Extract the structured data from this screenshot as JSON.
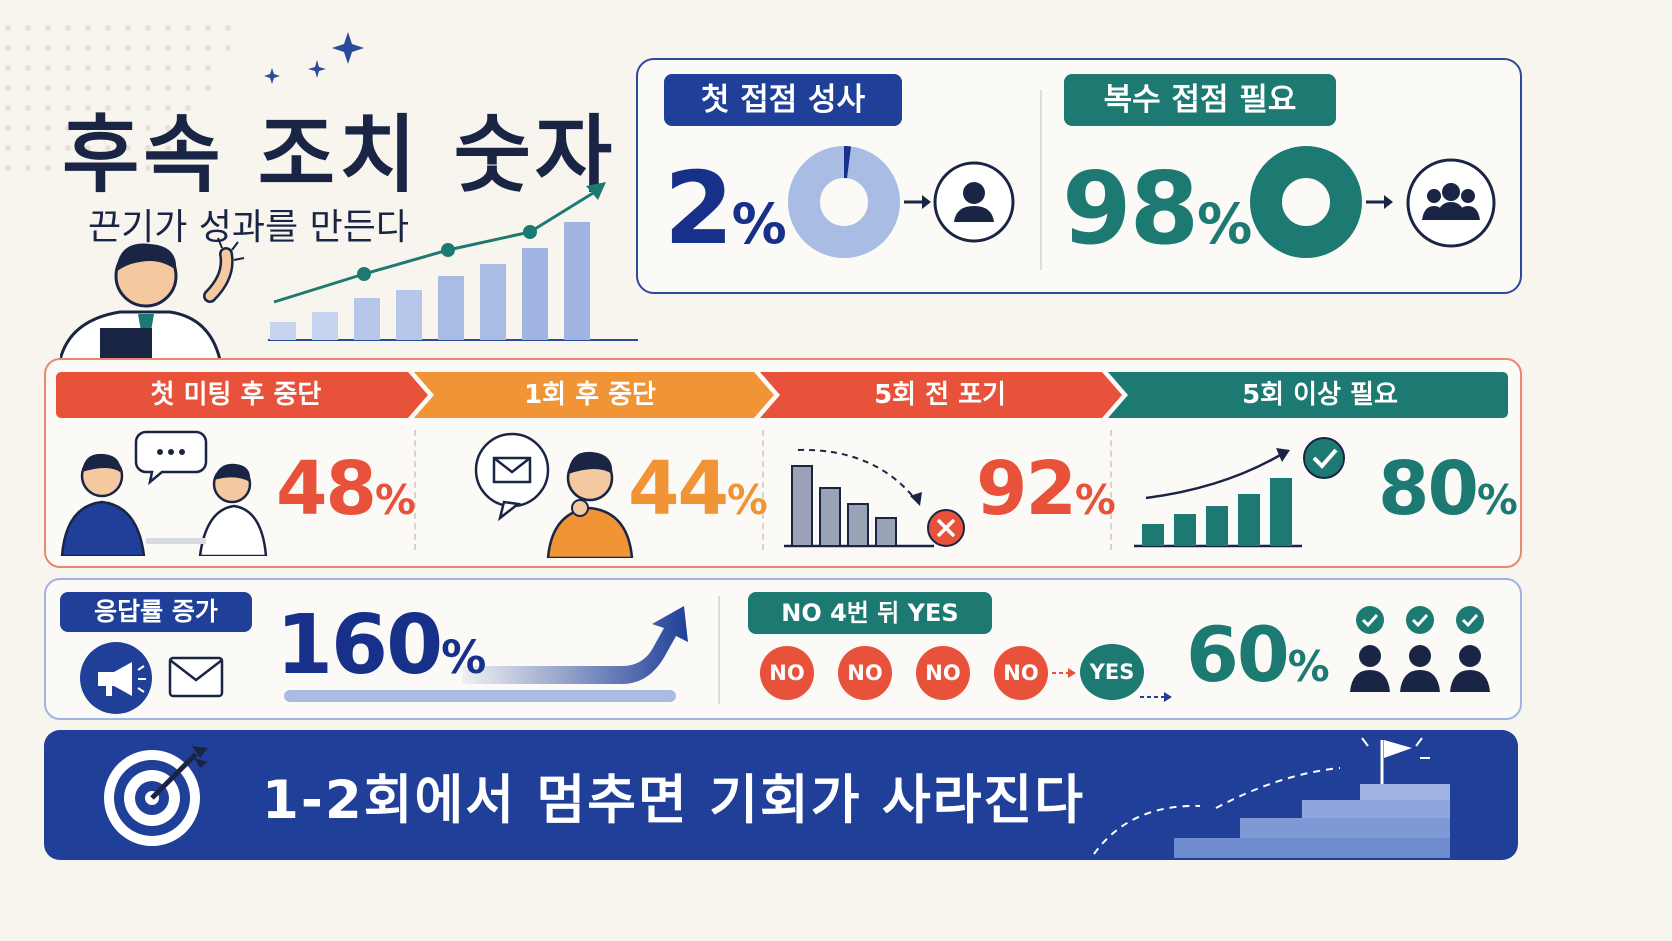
{
  "header": {
    "title": "후속 조치 숫자",
    "subtitle": "끈기가 성과를 만든다"
  },
  "contact_panel": {
    "first": {
      "label": "첫 접점 성사",
      "value": "2",
      "unit": "%",
      "fraction": 0.02,
      "color": "#17318a",
      "ring_color": "#a9bce3"
    },
    "multiple": {
      "label": "복수 접점 필요",
      "value": "98",
      "unit": "%",
      "fraction": 0.98,
      "color": "#1d7a72"
    }
  },
  "stages": [
    {
      "label": "첫 미팅 후 중단",
      "value": "48",
      "unit": "%",
      "color": "#e8513a"
    },
    {
      "label": "1회 후 중단",
      "value": "44",
      "unit": "%",
      "color": "#f09436"
    },
    {
      "label": "5회 전 포기",
      "value": "92",
      "unit": "%",
      "color": "#e8513a"
    },
    {
      "label": "5회 이상 필요",
      "value": "80",
      "unit": "%",
      "color": "#1d7a72"
    }
  ],
  "response": {
    "label": "응답률 증가",
    "value": "160",
    "unit": "%"
  },
  "no_yes": {
    "label": "NO 4번 뒤 YES",
    "badges": [
      "NO",
      "NO",
      "NO",
      "NO"
    ],
    "yes": "YES",
    "value": "60",
    "unit": "%"
  },
  "banner": {
    "text": "1-2회에서 멈추면 기회가 사라진다"
  },
  "icons": [
    "sparkle-icon",
    "person-icon",
    "group-icon",
    "chat-icon",
    "envelope-icon",
    "megaphone-icon",
    "check-icon",
    "target-icon",
    "flag-icon"
  ]
}
